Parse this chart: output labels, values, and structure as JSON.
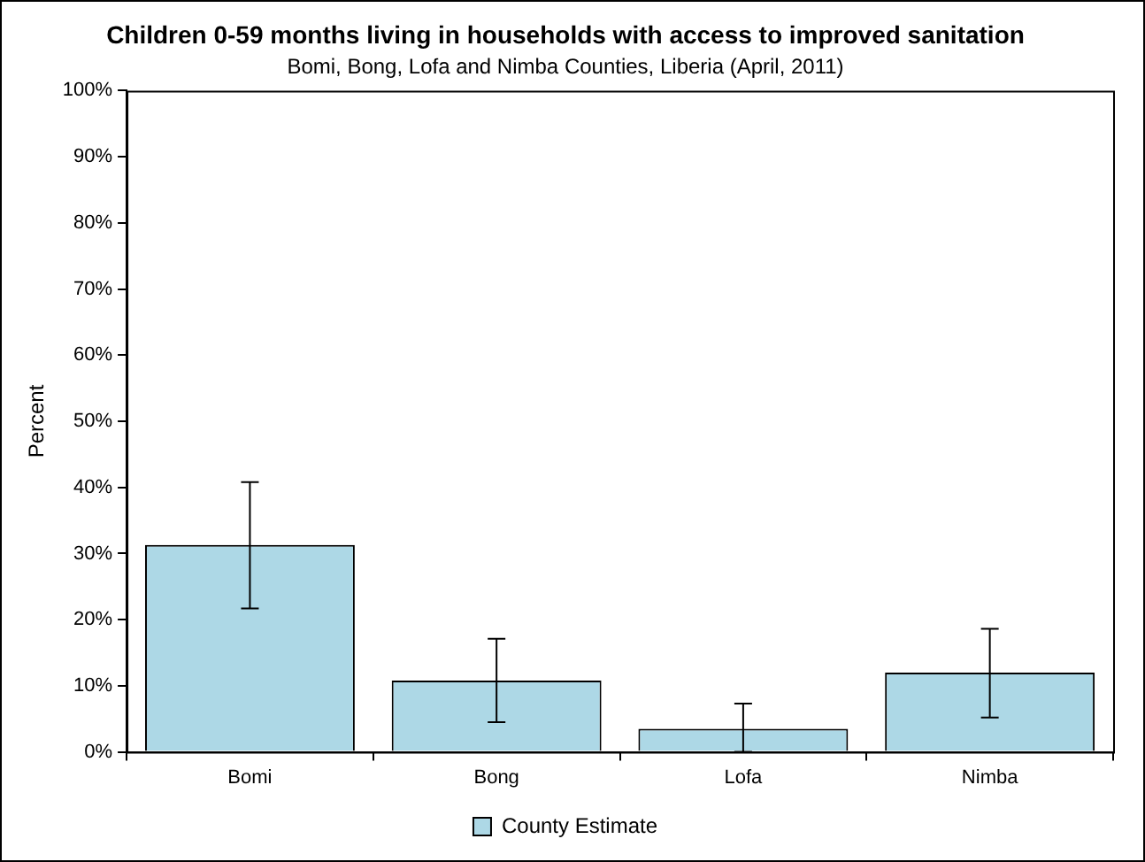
{
  "chart_data": {
    "type": "bar",
    "title": "Children 0-59 months living in households with access to improved sanitation",
    "subtitle": "Bomi, Bong, Lofa and Nimba Counties, Liberia (April, 2011)",
    "ylabel": "Percent",
    "categories": [
      "Bomi",
      "Bong",
      "Lofa",
      "Nimba"
    ],
    "series": [
      {
        "name": "County Estimate",
        "color": "#add8e6",
        "values": [
          31.3,
          10.8,
          3.5,
          12.0
        ],
        "errors": [
          [
            21.7,
            40.8
          ],
          [
            4.5,
            17.1
          ],
          [
            0,
            7.3
          ],
          [
            5.2,
            18.6
          ]
        ]
      }
    ],
    "ylim": [
      0,
      100
    ],
    "yticks": [
      {
        "value": 0,
        "label": "0%"
      },
      {
        "value": 10,
        "label": "10%"
      },
      {
        "value": 20,
        "label": "20%"
      },
      {
        "value": 30,
        "label": "30%"
      },
      {
        "value": 40,
        "label": "40%"
      },
      {
        "value": 50,
        "label": "50%"
      },
      {
        "value": 60,
        "label": "60%"
      },
      {
        "value": 70,
        "label": "70%"
      },
      {
        "value": 80,
        "label": "80%"
      },
      {
        "value": 90,
        "label": "90%"
      },
      {
        "value": 100,
        "label": "100%"
      }
    ],
    "grid": false,
    "legend": "bottom"
  }
}
